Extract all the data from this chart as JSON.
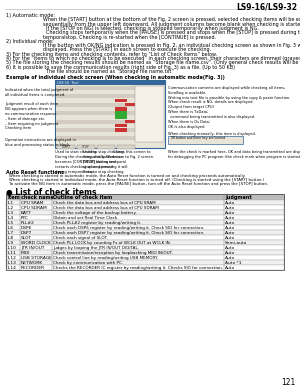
{
  "header": "LS9-16/LS9-32",
  "page_num": "121",
  "background": "#ffffff",
  "text_color": "#000000",
  "section_title": "● List of check items",
  "table_headers": [
    "Item",
    "check name",
    "Outline of check item",
    "Judgment"
  ],
  "table_rows": [
    [
      "1-1",
      "CPU SRAM",
      "Check the data bus and address bus of CPU SRAM",
      "Auto"
    ],
    [
      "1-2",
      "CPU SDRAM",
      "Check the data bus and address bus of CPU SDRAM",
      "Auto"
    ],
    [
      "1-3",
      "BATT",
      "Check the voltage of the backup battery.",
      "Auto"
    ],
    [
      "1-4",
      "RTC",
      "Obtain and set Real Time Clock.",
      "Auto"
    ],
    [
      "1-5",
      "PLL#2",
      "Check PLL#2 register by reading/writing it.",
      "Auto"
    ],
    [
      "1-6",
      "DSP6",
      "Check each DSP6 register by reading/writing it. Check SIO for connection.",
      "Auto"
    ],
    [
      "1-7",
      "DSP7",
      "Check each DSP7 register by reading/writing it. Check SIO for connection.",
      "Auto"
    ],
    [
      "1-8",
      "SLOT",
      "Check each signal of SLOT.",
      "Auto"
    ],
    [
      "1-9",
      "WORD CLOCK",
      "Check PLL LOCK by counting Fs of WCLK OUT at WCLK IN.",
      "Semi-auto"
    ],
    [
      "1-10",
      "JTR IN/OUT",
      "Judges by looping the JTR IN/OUT DIGITAL.",
      "Auto"
    ],
    [
      "1-11",
      "MIDI",
      "Check transmission/reception by loopbacking MIDI IN/OUT.",
      "Auto"
    ],
    [
      "1-12",
      "USB STORAGE",
      "Check control line by reading/writing USB MEMORY.",
      "Auto"
    ],
    [
      "1-13",
      "NETWORK",
      "Check by communication with PC.",
      "Auto *1"
    ],
    [
      "1-14",
      "RECORDER",
      "Checks the RECORDER IC register by reading/writing it. Checks SIO for connection.",
      "Auto"
    ]
  ],
  "blocks": [
    {
      "label": "1) Automatic mode:",
      "lines": [
        "When the [START] button at the bottom of the Fig. 2 screen is pressed, selected checking items will be executed",
        "sequentially from the upper left downward. All judgment columns become blank when checking is started.",
        "  If the [STOP on NG] is selected, checking is stopped temporarily when judgment is NG.",
        "  Checking stops temporarily when the [PAUSE] is pressed and stops when the [STOP] is pressed during the",
        "temporalstop. Checking is re-started when the [CONTINUE] is pressed."
      ]
    },
    {
      "label": "2) Individual mode:",
      "lines": [
        "If the button with OK/NG indication is pressed in Fig. 2, an individual checking screen as shown in Fig. 3 will be",
        "displayed. Press the [START] in each screen to execute the checking."
      ]
    },
    {
      "label": "3) For the checking items and checking contents, refer to “List of Check Items” below.",
      "lines": []
    },
    {
      "label": "4) For the “items to which no checking is to be executed” in each checking screen, their characters are dimmed (grayed out).",
      "lines": []
    },
    {
      "label": "5) The file storing the checking results should be named as “Storage file name.csv”. (Only general check results will be saved.)",
      "lines": []
    },
    {
      "label": "6) It is possible to save the communication results (right side of Fig. 3) as a file. (Up to 50 KB)",
      "lines": [
        "  The file should be named as “Storage file name.txt”"
      ]
    }
  ],
  "example_title": "Example of individual check screen (When checking in automatic mode(Fig. 3))",
  "left_annots": [
    "Indicated when the total judgment of\nall individual items is completed.",
    "Judgment result of each item\nNG appears when there is\nno communication response\n– Item of damage etc.\n– Item requiring no judgment",
    "Checking item",
    "Operation instructions are displayed in\nblue and processing status in black."
  ],
  "right_annots": [
    "Communication contents are displayed while checking all items,\nScrolling is available.\nWriting into text file is possible by using the copy & paste function.",
    "When check result is NG, details are displayed.\n(Output from target CPU)",
    "When there is TxData;\n  command being transmitted is also displayed.",
    "When there is Os Data;\nOK is also displayed",
    "When checking manually, this item is displayed."
  ],
  "bottom_annots_left": [
    "Used to start checking.\nDuring the checking, this button\nbecomes [CONTINUE] button and\nrestarts checking when pressed\nduring temporal stop.",
    "Used to stop checking\ntemporarily. Works as\n[STOP] during temporal\nstop, and pressing it will\nforce to stop checking.",
    "Closes this screen to\nreturn to Fig. 2 screen."
  ],
  "bottom_annot_right": "When the check is marked here, OK and data being transmitted are displayed\nfor debugging the PC program (the check mark when program is started.)",
  "auto_reset_title": "Auto Reset functions",
  "auto_reset_lines": [
    "When checking is started in automatic mode, the Auto Reset function is turned on and checking proceeds automatically.",
    "When checking is started in individual mode, the Auto Reset function is turned off. (Checking is started using the [START] button.)",
    "To activate the NG item in automatic mode, press the [PAUSE] button, turn off the Auto Reset function and press the [STOP] button."
  ]
}
